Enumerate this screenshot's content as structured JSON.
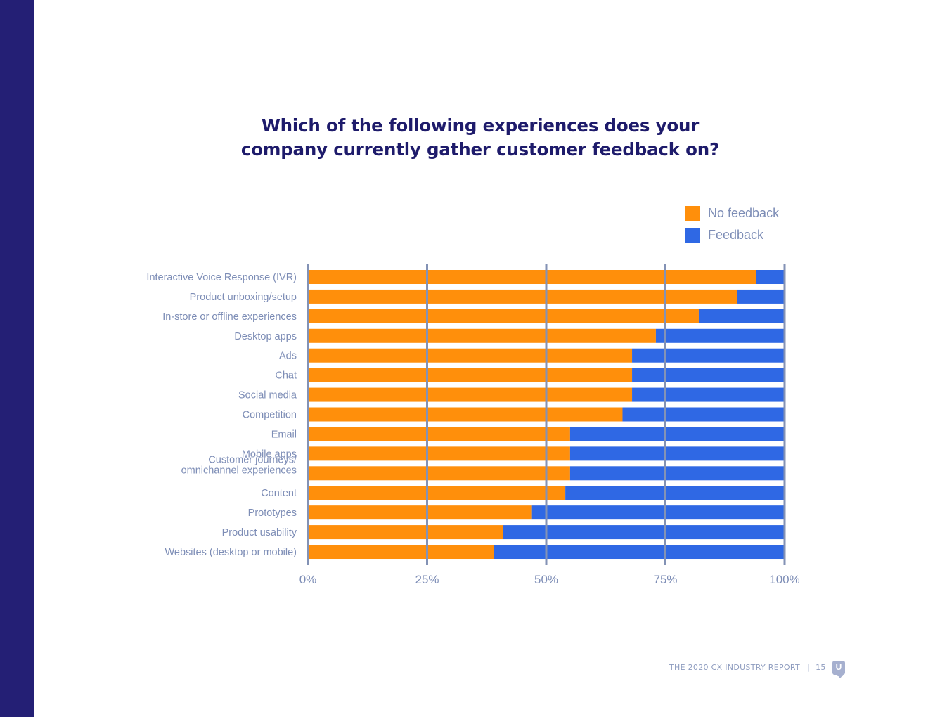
{
  "chart_data": {
    "type": "bar",
    "orientation": "horizontal",
    "stacked": true,
    "title_lines": [
      "Which of the following experiences does your",
      "company currently gather customer feedback on?"
    ],
    "categories": [
      "Interactive Voice Response (IVR)",
      "Product unboxing/setup",
      "In-store or offline experiences",
      "Desktop apps",
      "Ads",
      "Chat",
      "Social media",
      "Competition",
      "Email",
      "Mobile apps",
      "Customer journeys/\nomnichannel experiences",
      "Content",
      "Prototypes",
      "Product usability",
      "Websites (desktop or mobile)"
    ],
    "series": [
      {
        "name": "No feedback",
        "color": "#ff8f0b",
        "values": [
          94,
          90,
          82,
          73,
          68,
          68,
          68,
          66,
          55,
          55,
          55,
          54,
          47,
          41,
          39
        ]
      },
      {
        "name": "Feedback",
        "color": "#2f68e4",
        "values": [
          6,
          10,
          18,
          27,
          32,
          32,
          32,
          34,
          45,
          45,
          45,
          46,
          53,
          59,
          61
        ]
      }
    ],
    "xlim": [
      0,
      100
    ],
    "xticks": [
      "0%",
      "25%",
      "50%",
      "75%",
      "100%"
    ],
    "xlabel": "",
    "ylabel": "",
    "grid": true,
    "legend_position": "top-right"
  },
  "footer": {
    "report": "THE 2020 CX INDUSTRY REPORT",
    "separator": "|",
    "page": "15",
    "logo_letter": "U"
  },
  "colors": {
    "sidebar": "#241f75",
    "title": "#1e1b6b",
    "label": "#7d8db6",
    "axis": "#8392b5"
  }
}
